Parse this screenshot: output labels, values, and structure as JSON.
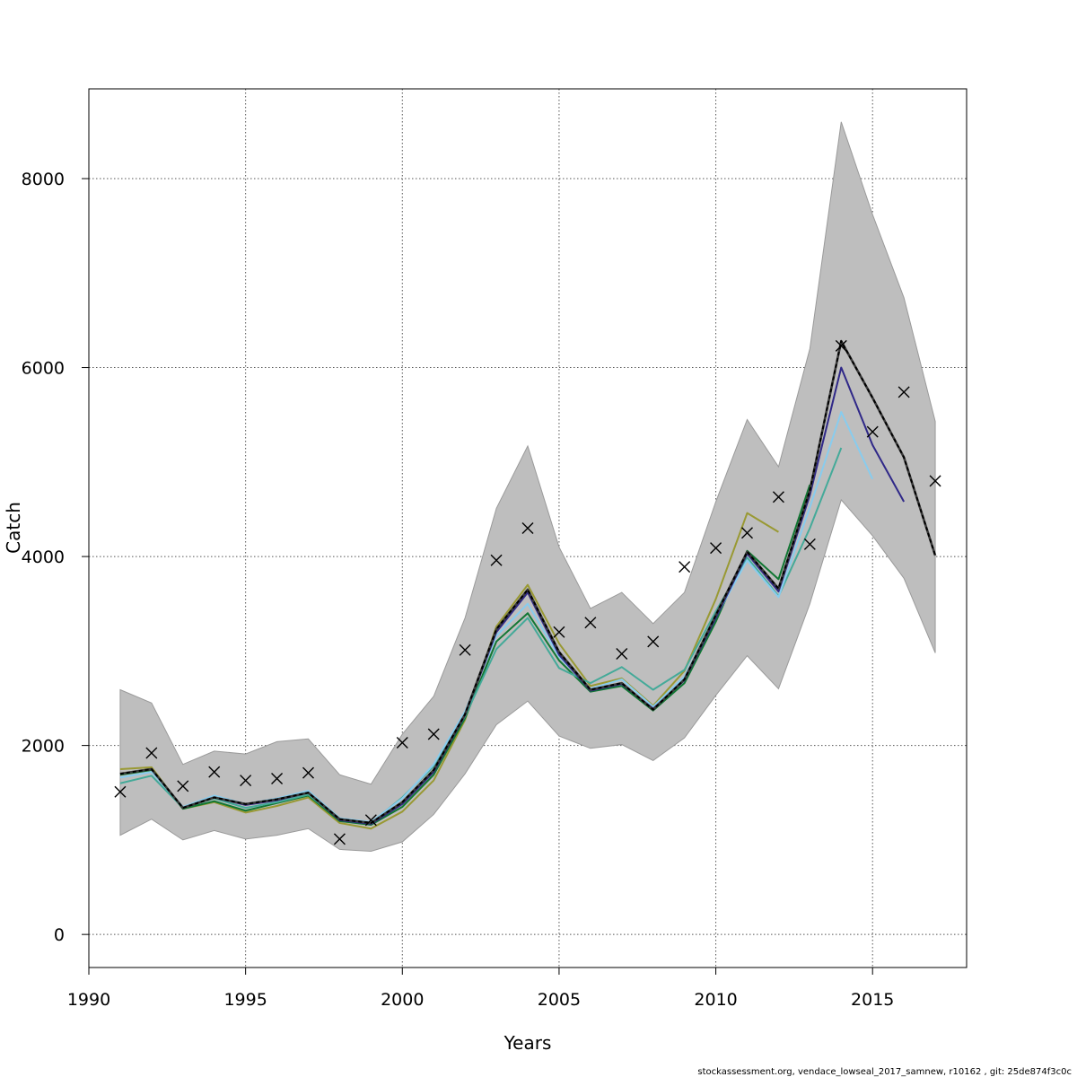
{
  "chart_data": {
    "type": "line",
    "title": "",
    "xlabel": "Years",
    "ylabel": "Catch",
    "xlim": [
      1990,
      2018
    ],
    "ylim": [
      -350,
      8950
    ],
    "xticks": [
      1990,
      1995,
      2000,
      2005,
      2010,
      2015
    ],
    "yticks": [
      0,
      2000,
      4000,
      6000,
      8000
    ],
    "grid": true,
    "footer": "stockassessment.org, vendace_lowseal_2017_samnew, r10162 , git: 25de874f3c0c",
    "band": {
      "x": [
        1991,
        1992,
        1993,
        1994,
        1995,
        1996,
        1997,
        1998,
        1999,
        2000,
        2001,
        2002,
        2003,
        2004,
        2005,
        2006,
        2007,
        2008,
        2009,
        2010,
        2011,
        2012,
        2013,
        2014,
        2015,
        2016,
        2017
      ],
      "lower": [
        1050,
        1220,
        1000,
        1100,
        1010,
        1050,
        1120,
        900,
        880,
        980,
        1270,
        1700,
        2220,
        2470,
        2100,
        1970,
        2010,
        1840,
        2080,
        2530,
        2950,
        2600,
        3500,
        4600,
        4220,
        3770,
        2980
      ],
      "upper": [
        2590,
        2450,
        1800,
        1940,
        1910,
        2040,
        2070,
        1690,
        1590,
        2120,
        2520,
        3350,
        4510,
        5170,
        4100,
        3450,
        3620,
        3290,
        3620,
        4580,
        5450,
        4950,
        6200,
        8600,
        7620,
        6740,
        5430
      ],
      "color": "#bebebe"
    },
    "observed": {
      "x": [
        1991,
        1992,
        1993,
        1994,
        1995,
        1996,
        1997,
        1998,
        1999,
        2000,
        2001,
        2002,
        2003,
        2004,
        2005,
        2006,
        2007,
        2008,
        2009,
        2010,
        2011,
        2012,
        2013,
        2014,
        2015,
        2016,
        2017
      ],
      "y": [
        1510,
        1920,
        1570,
        1720,
        1630,
        1650,
        1710,
        1010,
        1210,
        2030,
        2120,
        3010,
        3960,
        4300,
        3200,
        3300,
        2970,
        3100,
        3890,
        4090,
        4250,
        4630,
        4130,
        6230,
        5320,
        5740,
        4800
      ]
    },
    "series": [
      {
        "color": "#000000",
        "dashed": true,
        "x": [
          1991,
          1992,
          1993,
          1994,
          1995,
          1996,
          1997,
          1998,
          1999,
          2000,
          2001,
          2002,
          2003,
          2004,
          2005,
          2006,
          2007,
          2008,
          2009,
          2010,
          2011,
          2012,
          2013,
          2014,
          2015,
          2016,
          2017
        ],
        "values": [
          1700,
          1750,
          1340,
          1450,
          1380,
          1430,
          1500,
          1220,
          1180,
          1400,
          1740,
          2330,
          3230,
          3650,
          2990,
          2590,
          2660,
          2380,
          2700,
          3380,
          4050,
          3660,
          4700,
          6280,
          5680,
          5050,
          4010
        ]
      },
      {
        "color": "#2f2888",
        "x": [
          1991,
          1992,
          1993,
          1994,
          1995,
          1996,
          1997,
          1998,
          1999,
          2000,
          2001,
          2002,
          2003,
          2004,
          2005,
          2006,
          2007,
          2008,
          2009,
          2010,
          2011,
          2012,
          2013,
          2014,
          2015,
          2016
        ],
        "values": [
          1700,
          1750,
          1340,
          1450,
          1370,
          1420,
          1500,
          1210,
          1170,
          1380,
          1720,
          2320,
          3200,
          3620,
          2960,
          2580,
          2650,
          2390,
          2690,
          3350,
          4030,
          3630,
          4650,
          6000,
          5180,
          4580
        ]
      },
      {
        "color": "#88ccee",
        "x": [
          1991,
          1992,
          1993,
          1994,
          1995,
          1996,
          1997,
          1998,
          1999,
          2000,
          2001,
          2002,
          2003,
          2004,
          2005,
          2006,
          2007,
          2008,
          2009,
          2010,
          2011,
          2012,
          2013,
          2014,
          2015
        ],
        "values": [
          1660,
          1720,
          1350,
          1470,
          1380,
          1440,
          1520,
          1230,
          1190,
          1440,
          1800,
          2360,
          3160,
          3500,
          2940,
          2600,
          2700,
          2410,
          2730,
          3360,
          3960,
          3570,
          4520,
          5530,
          4820
        ]
      },
      {
        "color": "#44aa99",
        "x": [
          1991,
          1992,
          1993,
          1994,
          1995,
          1996,
          1997,
          1998,
          1999,
          2000,
          2001,
          2002,
          2003,
          2004,
          2005,
          2006,
          2007,
          2008,
          2009,
          2010,
          2011,
          2012,
          2013,
          2014
        ],
        "values": [
          1600,
          1680,
          1340,
          1440,
          1340,
          1400,
          1480,
          1220,
          1180,
          1450,
          1780,
          2310,
          3020,
          3350,
          2820,
          2660,
          2830,
          2590,
          2800,
          3420,
          3990,
          3580,
          4300,
          5150
        ]
      },
      {
        "color": "#117733",
        "x": [
          1991,
          1992,
          1993,
          1994,
          1995,
          1996,
          1997,
          1998,
          1999,
          2000,
          2001,
          2002,
          2003,
          2004,
          2005,
          2006,
          2007,
          2008,
          2009,
          2010,
          2011,
          2012,
          2013
        ],
        "values": [
          1690,
          1740,
          1330,
          1410,
          1310,
          1390,
          1470,
          1200,
          1160,
          1350,
          1690,
          2290,
          3100,
          3400,
          2900,
          2570,
          2630,
          2370,
          2660,
          3310,
          4060,
          3760,
          4760
        ]
      },
      {
        "color": "#999933",
        "x": [
          1991,
          1992,
          1993,
          1994,
          1995,
          1996,
          1997,
          1998,
          1999,
          2000,
          2001,
          2002,
          2003,
          2004,
          2005,
          2006,
          2007,
          2008,
          2009,
          2010,
          2011,
          2012
        ],
        "values": [
          1750,
          1770,
          1330,
          1400,
          1290,
          1360,
          1450,
          1180,
          1120,
          1300,
          1630,
          2270,
          3260,
          3700,
          3080,
          2630,
          2710,
          2420,
          2790,
          3550,
          4460,
          4260
        ]
      }
    ]
  }
}
